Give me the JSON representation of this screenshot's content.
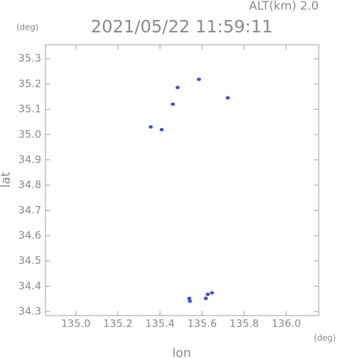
{
  "chart_data": {
    "type": "scatter",
    "title": "2021/05/22 11:59:11",
    "subtitle": "ALT(km) 2.0",
    "y_unit": "(deg)",
    "x_unit": "(deg)",
    "xlabel": "lon",
    "ylabel": "lat",
    "color": "#3b55d9",
    "x": [
      135.484,
      135.585,
      135.461,
      135.722,
      135.356,
      135.408,
      135.539,
      135.627,
      135.647,
      135.618,
      135.542
    ],
    "y": [
      35.186,
      35.218,
      35.12,
      35.145,
      35.03,
      35.019,
      34.352,
      34.368,
      34.374,
      34.352,
      34.341
    ],
    "xlim": [
      134.856,
      136.154
    ],
    "ylim": [
      34.284,
      35.355
    ],
    "xticks": [
      {
        "value": 135.0,
        "label": "135.0"
      },
      135.2,
      135.4,
      135.6,
      135.8,
      {
        "value": 136.0,
        "label": "136.0"
      }
    ],
    "yticks": [
      34.3,
      34.4,
      34.5,
      34.6,
      34.7,
      34.8,
      34.9,
      {
        "value": 35.0,
        "label": "35.0"
      },
      35.1,
      35.2,
      35.3
    ]
  }
}
